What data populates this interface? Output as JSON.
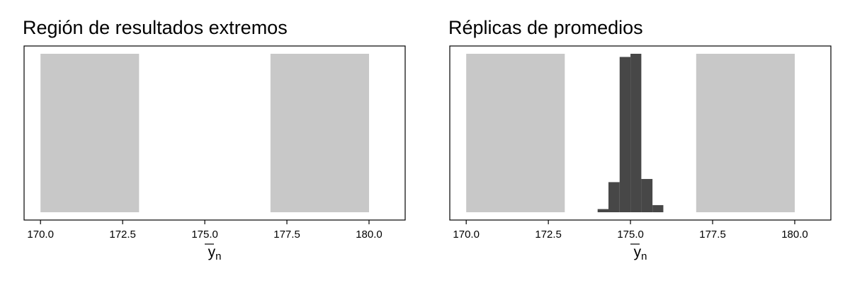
{
  "chart_data": [
    {
      "type": "histogram",
      "title": "Región de resultados extremos",
      "xlabel": {
        "base": "y",
        "sub": "n",
        "overline": true
      },
      "xlim": [
        169.5,
        181.1
      ],
      "x_ticks": [
        "170.0",
        "172.5",
        "175.0",
        "177.5",
        "180.0"
      ],
      "x_tick_values": [
        170.0,
        172.5,
        175.0,
        177.5,
        180.0
      ],
      "y_ticks": [],
      "ylim": [
        0,
        1
      ],
      "shaded_regions": [
        {
          "x": [
            170.0,
            173.0
          ],
          "color": "#c8c8c8"
        },
        {
          "x": [
            177.0,
            180.0
          ],
          "color": "#c8c8c8"
        }
      ],
      "bins": []
    },
    {
      "type": "histogram",
      "title": "Réplicas de promedios",
      "xlabel": {
        "base": "y",
        "sub": "n",
        "overline": true
      },
      "xlim": [
        169.5,
        181.1
      ],
      "x_ticks": [
        "170.0",
        "172.5",
        "175.0",
        "177.5",
        "180.0"
      ],
      "x_tick_values": [
        170.0,
        172.5,
        175.0,
        177.5,
        180.0
      ],
      "y_ticks": [],
      "ylim": [
        0,
        1
      ],
      "shaded_regions": [
        {
          "x": [
            170.0,
            173.0
          ],
          "color": "#c8c8c8"
        },
        {
          "x": [
            177.0,
            180.0
          ],
          "color": "#c8c8c8"
        }
      ],
      "bar_color": "#474747",
      "bins": [
        {
          "x0": 174.0,
          "x1": 174.33,
          "height": 0.02
        },
        {
          "x0": 174.33,
          "x1": 174.67,
          "height": 0.19
        },
        {
          "x0": 174.67,
          "x1": 175.0,
          "height": 0.98
        },
        {
          "x0": 175.0,
          "x1": 175.33,
          "height": 1.0
        },
        {
          "x0": 175.33,
          "x1": 175.67,
          "height": 0.21
        },
        {
          "x0": 175.67,
          "x1": 176.0,
          "height": 0.045
        }
      ]
    }
  ]
}
